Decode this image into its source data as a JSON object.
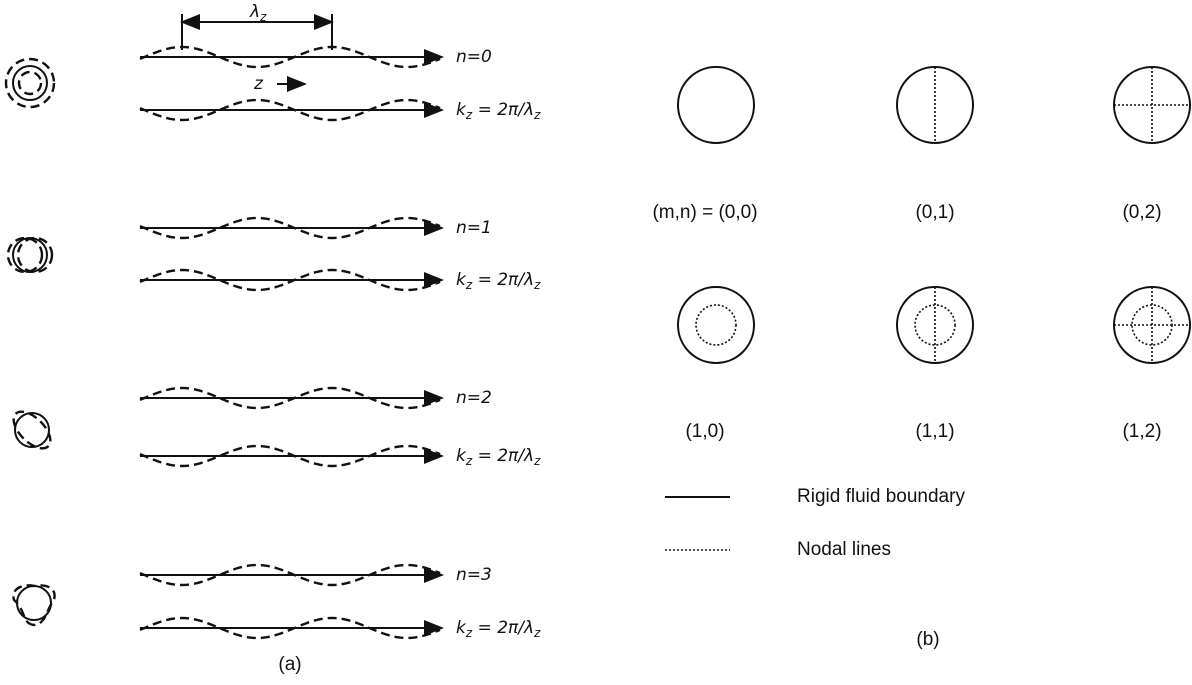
{
  "panel_a": {
    "wavelength_label": {
      "symbol": "λ",
      "subscript": "z"
    },
    "axis_label": "z",
    "modes": [
      {
        "label": "n=0",
        "wavenumber": {
          "k": "k",
          "k_sub": "z",
          "relation": " = 2π/λ",
          "lambda_sub": "z"
        }
      },
      {
        "label": "n=1",
        "wavenumber": {
          "k": "k",
          "k_sub": "z",
          "relation": " = 2π/λ",
          "lambda_sub": "z"
        }
      },
      {
        "label": "n=2",
        "wavenumber": {
          "k": "k",
          "k_sub": "z",
          "relation": " = 2π/λ",
          "lambda_sub": "z"
        }
      },
      {
        "label": "n=3",
        "wavenumber": {
          "k": "k",
          "k_sub": "z",
          "relation": " = 2π/λ",
          "lambda_sub": "z"
        }
      }
    ],
    "caption": "(a)"
  },
  "panel_b": {
    "modes": [
      {
        "label": "(m,n) = (0,0)"
      },
      {
        "label": "(0,1)"
      },
      {
        "label": "(0,2)"
      },
      {
        "label": "(1,0)"
      },
      {
        "label": "(1,1)"
      },
      {
        "label": "(1,2)"
      }
    ],
    "legend": [
      {
        "label": "Rigid fluid boundary"
      },
      {
        "label": "Nodal lines"
      }
    ],
    "caption": "(b)"
  }
}
